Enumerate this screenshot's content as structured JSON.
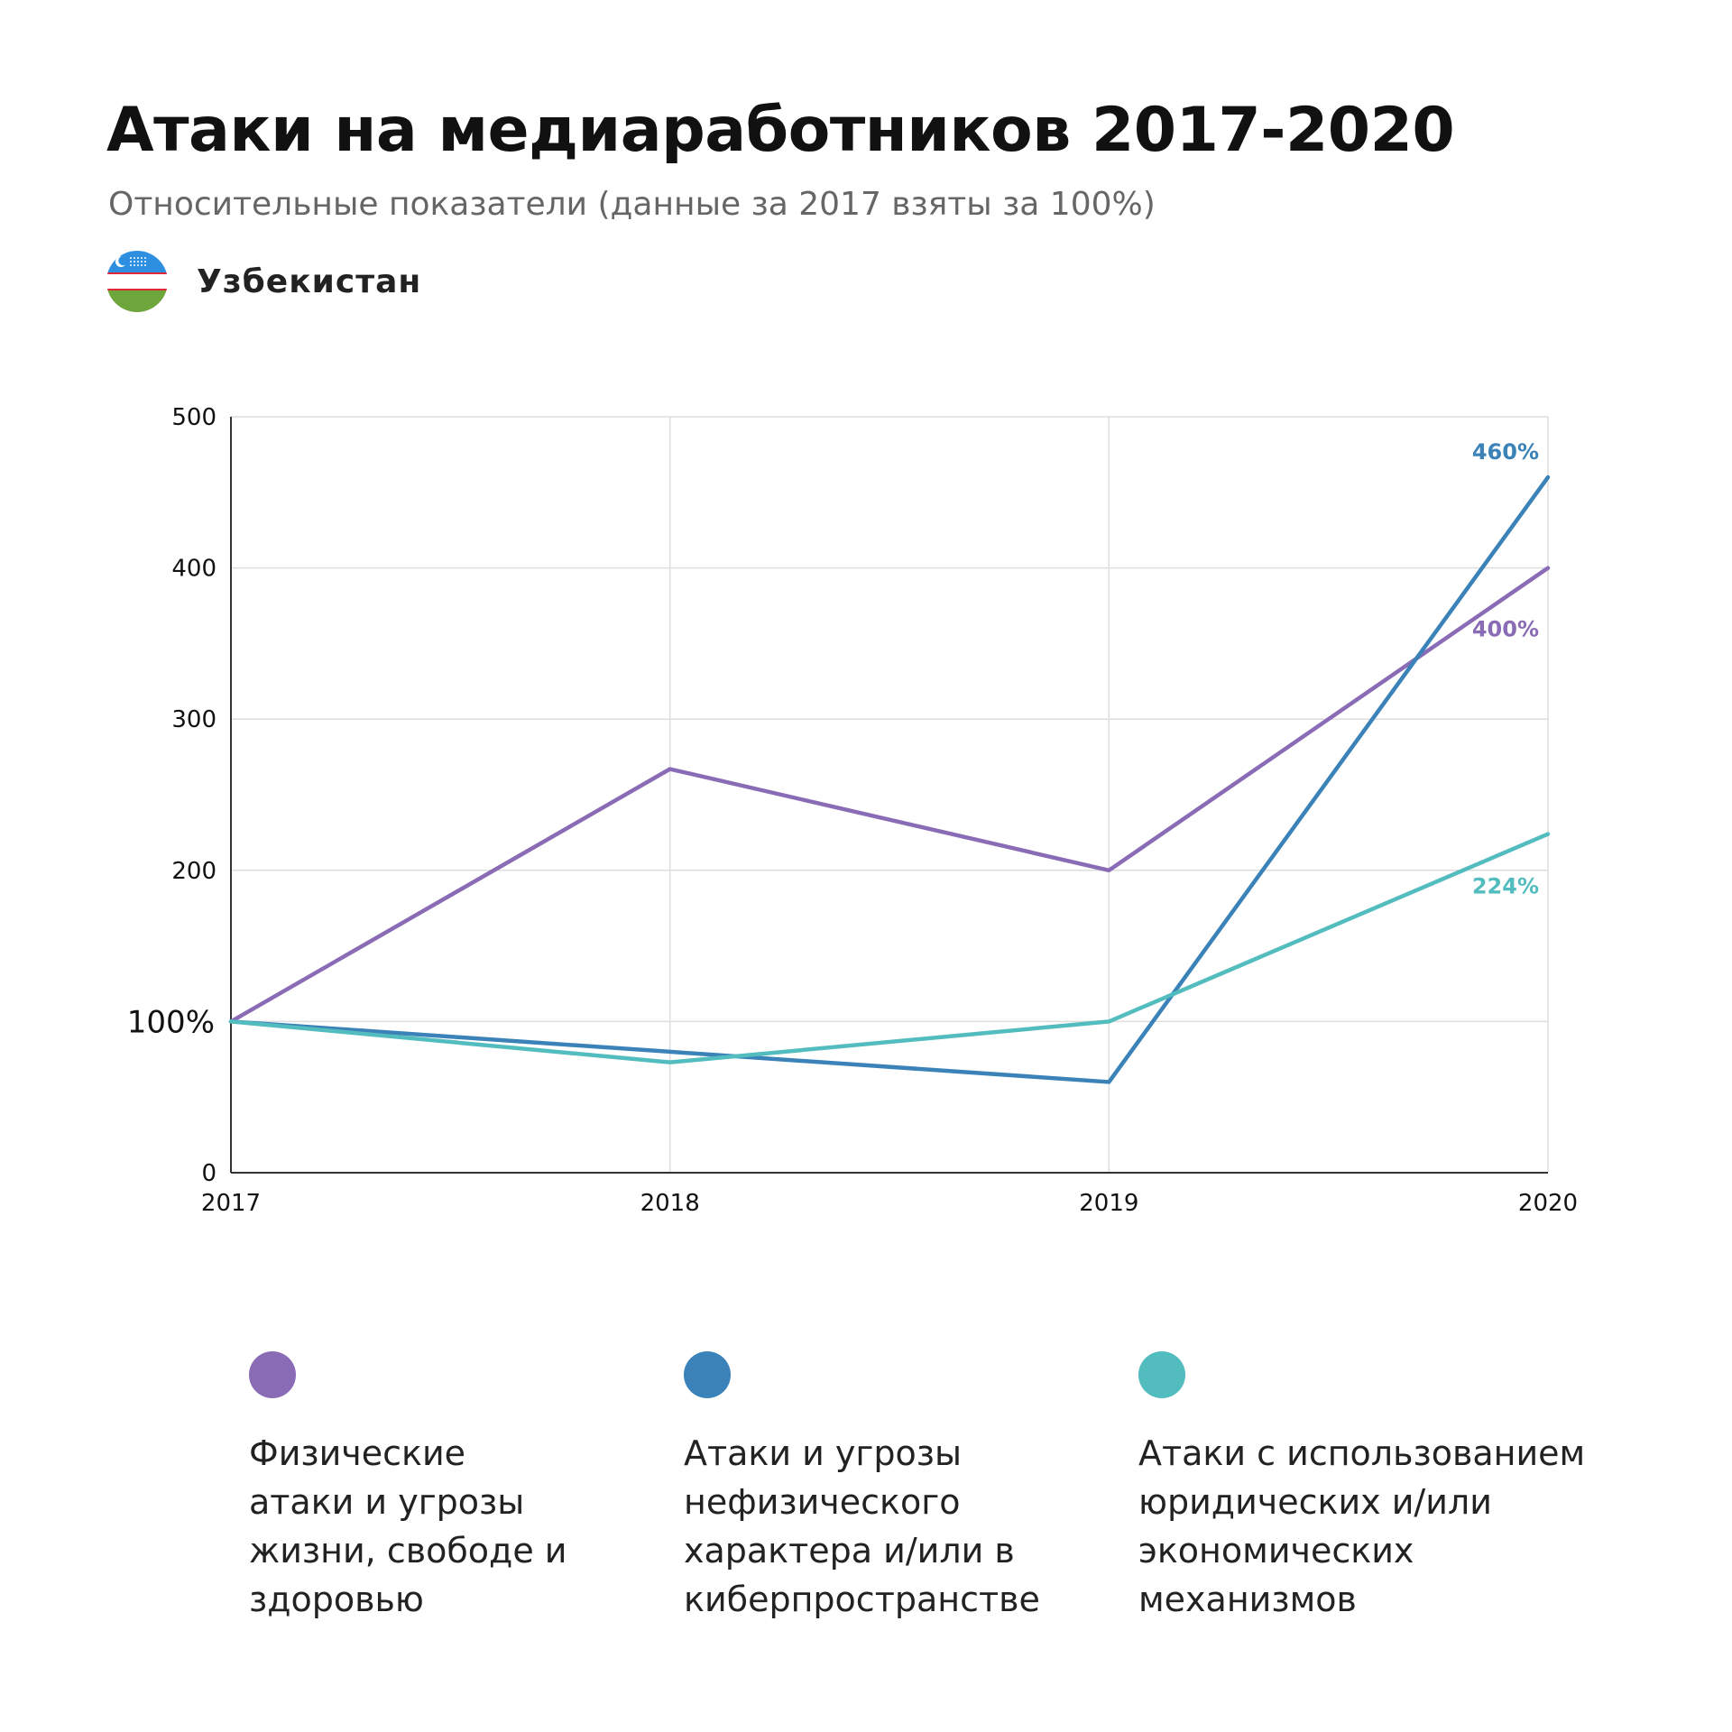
{
  "header": {
    "title": "Атаки на медиаработников 2017-2020",
    "subtitle": "Относительные показатели (данные за 2017 взяты за 100%)",
    "country": "Узбекистан",
    "country_flag_colors": {
      "top": "#2E8FE0",
      "middle": "#FFFFFF",
      "stripe": "#E0283A",
      "bottom": "#6DA63A"
    }
  },
  "chart_data": {
    "type": "line",
    "x": [
      "2017",
      "2018",
      "2019",
      "2020"
    ],
    "ylim": [
      0,
      500
    ],
    "y_ticks": [
      "0",
      "100%",
      "200",
      "300",
      "400",
      "500"
    ],
    "y_tick_values": [
      0,
      100,
      200,
      300,
      400,
      500
    ],
    "grid": true,
    "series": [
      {
        "name": "Физические атаки и угрозы жизни, свободе и здоровью",
        "color": "#8A6BB5",
        "values": [
          100,
          267,
          200,
          400
        ],
        "end_label": "400%"
      },
      {
        "name": "Атаки и угрозы нефизического характера и/или в киберпространстве",
        "color": "#3A82B8",
        "values": [
          100,
          80,
          60,
          460
        ],
        "end_label": "460%"
      },
      {
        "name": "Атаки с использованием юридических и/или экономических механизмов",
        "color": "#52BCBE",
        "values": [
          100,
          73,
          100,
          224
        ],
        "end_label": "224%"
      }
    ]
  },
  "legend": [
    {
      "label": "Физические атаки и угрозы жизни, свободе и здоровью",
      "color": "#8A6BB5"
    },
    {
      "label": "Атаки и угрозы нефизического характера и/или в киберпространстве",
      "color": "#3A82B8"
    },
    {
      "label": "Атаки с использованием юридических и/или экономических механизмов",
      "color": "#52BCBE"
    }
  ]
}
